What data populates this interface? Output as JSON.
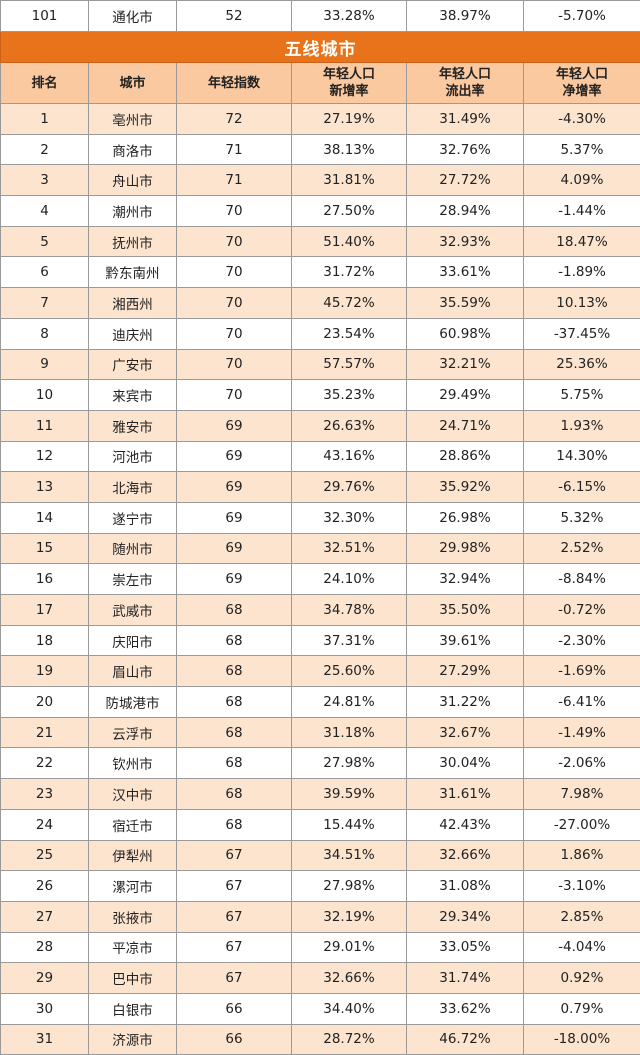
{
  "previous_row": {
    "rank": "101",
    "city": "通化市",
    "index": "52",
    "new_rate": "33.28%",
    "out_rate": "38.97%",
    "net_rate": "-5.70%"
  },
  "section_title": "五线城市",
  "headers": {
    "rank": "排名",
    "city": "城市",
    "index": "年轻指数",
    "new_rate_l1": "年轻人口",
    "new_rate_l2": "新增率",
    "out_rate_l1": "年轻人口",
    "out_rate_l2": "流出率",
    "net_rate_l1": "年轻人口",
    "net_rate_l2": "净增率"
  },
  "rows": [
    {
      "rank": "1",
      "city": "亳州市",
      "index": "72",
      "new_rate": "27.19%",
      "out_rate": "31.49%",
      "net_rate": "-4.30%"
    },
    {
      "rank": "2",
      "city": "商洛市",
      "index": "71",
      "new_rate": "38.13%",
      "out_rate": "32.76%",
      "net_rate": "5.37%"
    },
    {
      "rank": "3",
      "city": "舟山市",
      "index": "71",
      "new_rate": "31.81%",
      "out_rate": "27.72%",
      "net_rate": "4.09%"
    },
    {
      "rank": "4",
      "city": "潮州市",
      "index": "70",
      "new_rate": "27.50%",
      "out_rate": "28.94%",
      "net_rate": "-1.44%"
    },
    {
      "rank": "5",
      "city": "抚州市",
      "index": "70",
      "new_rate": "51.40%",
      "out_rate": "32.93%",
      "net_rate": "18.47%"
    },
    {
      "rank": "6",
      "city": "黔东南州",
      "index": "70",
      "new_rate": "31.72%",
      "out_rate": "33.61%",
      "net_rate": "-1.89%"
    },
    {
      "rank": "7",
      "city": "湘西州",
      "index": "70",
      "new_rate": "45.72%",
      "out_rate": "35.59%",
      "net_rate": "10.13%"
    },
    {
      "rank": "8",
      "city": "迪庆州",
      "index": "70",
      "new_rate": "23.54%",
      "out_rate": "60.98%",
      "net_rate": "-37.45%"
    },
    {
      "rank": "9",
      "city": "广安市",
      "index": "70",
      "new_rate": "57.57%",
      "out_rate": "32.21%",
      "net_rate": "25.36%"
    },
    {
      "rank": "10",
      "city": "来宾市",
      "index": "70",
      "new_rate": "35.23%",
      "out_rate": "29.49%",
      "net_rate": "5.75%"
    },
    {
      "rank": "11",
      "city": "雅安市",
      "index": "69",
      "new_rate": "26.63%",
      "out_rate": "24.71%",
      "net_rate": "1.93%"
    },
    {
      "rank": "12",
      "city": "河池市",
      "index": "69",
      "new_rate": "43.16%",
      "out_rate": "28.86%",
      "net_rate": "14.30%"
    },
    {
      "rank": "13",
      "city": "北海市",
      "index": "69",
      "new_rate": "29.76%",
      "out_rate": "35.92%",
      "net_rate": "-6.15%"
    },
    {
      "rank": "14",
      "city": "遂宁市",
      "index": "69",
      "new_rate": "32.30%",
      "out_rate": "26.98%",
      "net_rate": "5.32%"
    },
    {
      "rank": "15",
      "city": "随州市",
      "index": "69",
      "new_rate": "32.51%",
      "out_rate": "29.98%",
      "net_rate": "2.52%"
    },
    {
      "rank": "16",
      "city": "崇左市",
      "index": "69",
      "new_rate": "24.10%",
      "out_rate": "32.94%",
      "net_rate": "-8.84%"
    },
    {
      "rank": "17",
      "city": "武威市",
      "index": "68",
      "new_rate": "34.78%",
      "out_rate": "35.50%",
      "net_rate": "-0.72%"
    },
    {
      "rank": "18",
      "city": "庆阳市",
      "index": "68",
      "new_rate": "37.31%",
      "out_rate": "39.61%",
      "net_rate": "-2.30%"
    },
    {
      "rank": "19",
      "city": "眉山市",
      "index": "68",
      "new_rate": "25.60%",
      "out_rate": "27.29%",
      "net_rate": "-1.69%"
    },
    {
      "rank": "20",
      "city": "防城港市",
      "index": "68",
      "new_rate": "24.81%",
      "out_rate": "31.22%",
      "net_rate": "-6.41%"
    },
    {
      "rank": "21",
      "city": "云浮市",
      "index": "68",
      "new_rate": "31.18%",
      "out_rate": "32.67%",
      "net_rate": "-1.49%"
    },
    {
      "rank": "22",
      "city": "钦州市",
      "index": "68",
      "new_rate": "27.98%",
      "out_rate": "30.04%",
      "net_rate": "-2.06%"
    },
    {
      "rank": "23",
      "city": "汉中市",
      "index": "68",
      "new_rate": "39.59%",
      "out_rate": "31.61%",
      "net_rate": "7.98%"
    },
    {
      "rank": "24",
      "city": "宿迁市",
      "index": "68",
      "new_rate": "15.44%",
      "out_rate": "42.43%",
      "net_rate": "-27.00%"
    },
    {
      "rank": "25",
      "city": "伊犁州",
      "index": "67",
      "new_rate": "34.51%",
      "out_rate": "32.66%",
      "net_rate": "1.86%"
    },
    {
      "rank": "26",
      "city": "漯河市",
      "index": "67",
      "new_rate": "27.98%",
      "out_rate": "31.08%",
      "net_rate": "-3.10%"
    },
    {
      "rank": "27",
      "city": "张掖市",
      "index": "67",
      "new_rate": "32.19%",
      "out_rate": "29.34%",
      "net_rate": "2.85%"
    },
    {
      "rank": "28",
      "city": "平凉市",
      "index": "67",
      "new_rate": "29.01%",
      "out_rate": "33.05%",
      "net_rate": "-4.04%"
    },
    {
      "rank": "29",
      "city": "巴中市",
      "index": "67",
      "new_rate": "32.66%",
      "out_rate": "31.74%",
      "net_rate": "0.92%"
    },
    {
      "rank": "30",
      "city": "白银市",
      "index": "66",
      "new_rate": "34.40%",
      "out_rate": "33.62%",
      "net_rate": "0.79%"
    },
    {
      "rank": "31",
      "city": "济源市",
      "index": "66",
      "new_rate": "28.72%",
      "out_rate": "46.72%",
      "net_rate": "-18.00%"
    }
  ]
}
